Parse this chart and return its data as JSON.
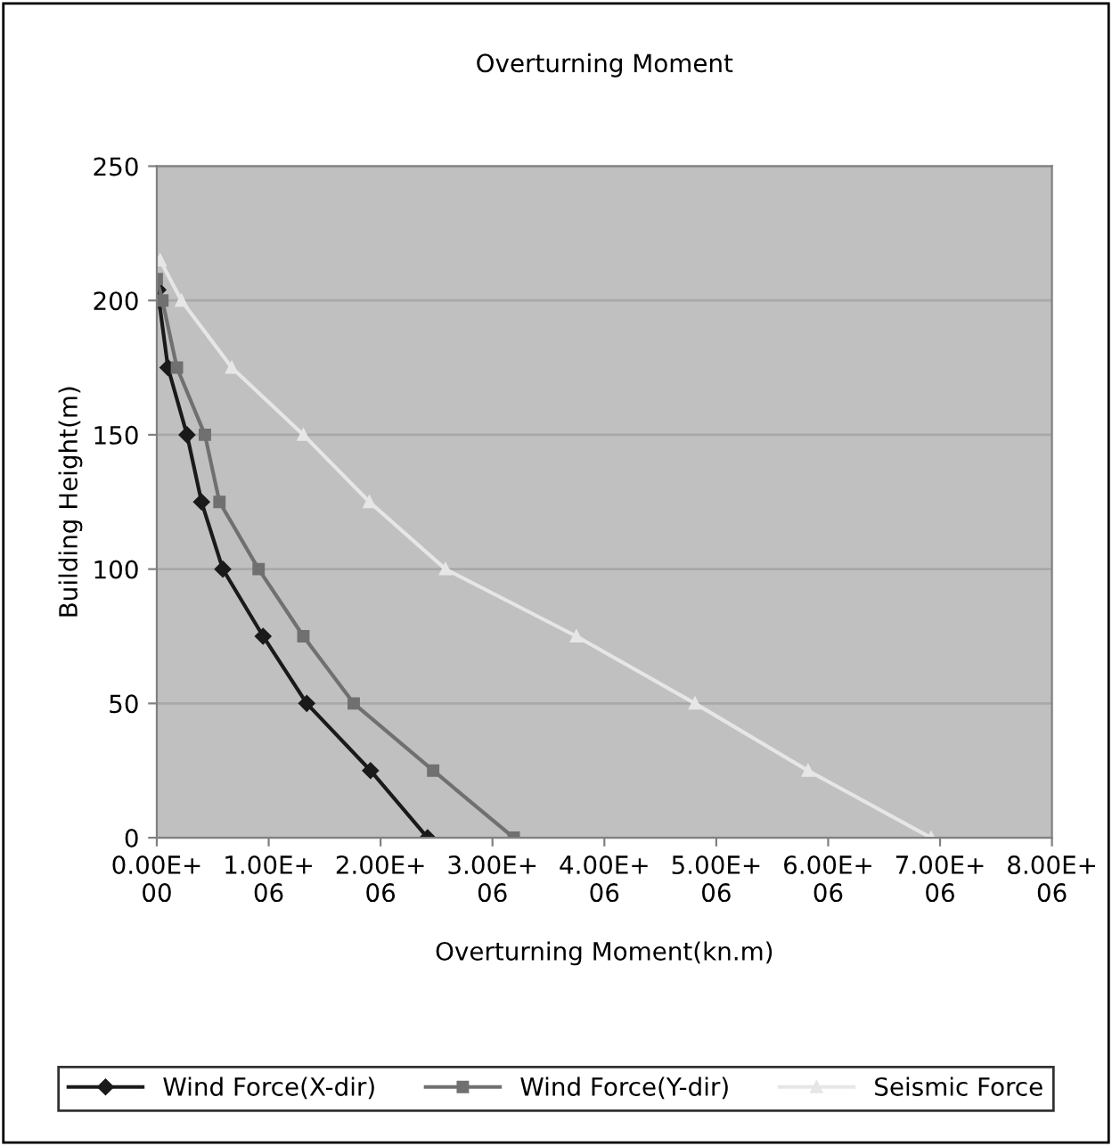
{
  "chart_data": {
    "type": "line",
    "title": "Overturning Moment",
    "xlabel": "Overturning Moment(kn.m)",
    "ylabel": "Building Height(m)",
    "xlim": [
      0,
      8000000
    ],
    "ylim": [
      0,
      250
    ],
    "xticks": [
      {
        "value": 0,
        "label": "0.00E+00"
      },
      {
        "value": 1000000,
        "label": "1.00E+06"
      },
      {
        "value": 2000000,
        "label": "2.00E+06"
      },
      {
        "value": 3000000,
        "label": "3.00E+06"
      },
      {
        "value": 4000000,
        "label": "4.00E+06"
      },
      {
        "value": 5000000,
        "label": "5.00E+06"
      },
      {
        "value": 6000000,
        "label": "6.00E+06"
      },
      {
        "value": 7000000,
        "label": "7.00E+06"
      },
      {
        "value": 8000000,
        "label": "8.00E+06"
      }
    ],
    "yticks": [
      0,
      50,
      100,
      150,
      200,
      250
    ],
    "grid": "y",
    "legend": "bottom",
    "line_style": "solid",
    "series": [
      {
        "name": "Wind Force(X-dir)",
        "color": "#1a1a1a",
        "marker": "diamond",
        "x": [
          2420000,
          1910000,
          1340000,
          950000,
          590000,
          400000,
          270000,
          100000,
          20000,
          10000
        ],
        "values": [
          0,
          25,
          50,
          75,
          100,
          125,
          150,
          175,
          200,
          204
        ]
      },
      {
        "name": "Wind Force(Y-dir)",
        "color": "#707070",
        "marker": "square",
        "x": [
          3190000,
          2470000,
          1760000,
          1310000,
          910000,
          560000,
          430000,
          180000,
          50000,
          0
        ],
        "values": [
          0,
          25,
          50,
          75,
          100,
          125,
          150,
          175,
          200,
          208
        ]
      },
      {
        "name": "Seismic Force",
        "color": "#e6e6e6",
        "marker": "triangle",
        "x": [
          6920000,
          5820000,
          4810000,
          3750000,
          2580000,
          1900000,
          1310000,
          670000,
          220000,
          30000
        ],
        "values": [
          0,
          25,
          50,
          75,
          100,
          125,
          150,
          175,
          200,
          215
        ]
      }
    ]
  }
}
